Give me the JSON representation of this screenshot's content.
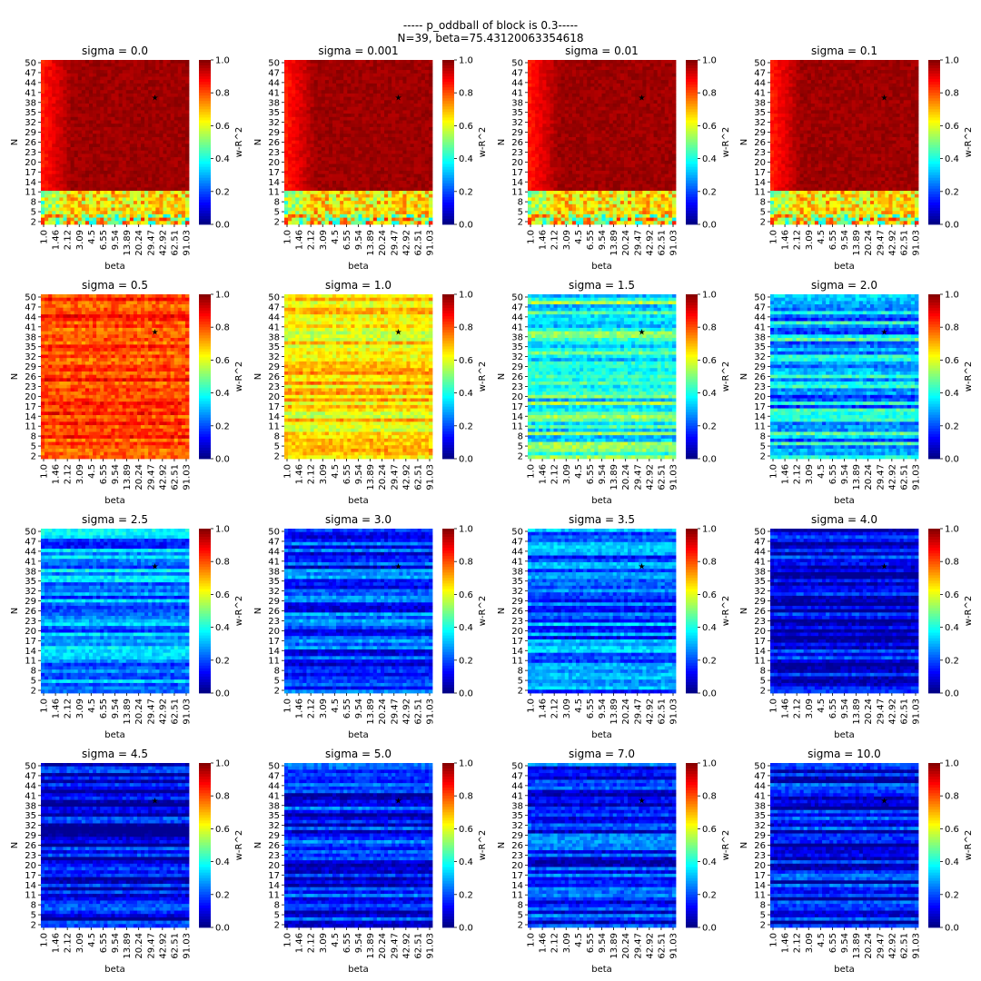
{
  "figure": {
    "title_line1": "----- p_oddball of block is 0.3-----",
    "title_line2": "N=39, beta=75.43120063354618"
  },
  "chart_data": {
    "type": "heatmap",
    "grid": false,
    "colormap": "jet",
    "colorbar_label": "w-R^2",
    "colorbar_ticks": [
      "0.0",
      "0.2",
      "0.4",
      "0.6",
      "0.8",
      "1.0"
    ],
    "xlabel": "beta",
    "ylabel": "N",
    "x_tick_labels": [
      "1.0",
      "1.46",
      "2.12",
      "3.09",
      "4.5",
      "6.55",
      "9.54",
      "13.89",
      "20.24",
      "29.47",
      "42.92",
      "62.51",
      "91.03"
    ],
    "y_tick_labels": [
      "50",
      "47",
      "44",
      "41",
      "38",
      "35",
      "32",
      "29",
      "26",
      "23",
      "20",
      "17",
      "14",
      "11",
      "8",
      "5",
      "2"
    ],
    "marker": {
      "symbol": "★",
      "N": 39,
      "beta": 75.43120063354618
    },
    "panels": [
      {
        "title": "sigma = 0.0",
        "sigma": 0.0,
        "level": 0.95
      },
      {
        "title": "sigma = 0.001",
        "sigma": 0.001,
        "level": 0.95
      },
      {
        "title": "sigma = 0.01",
        "sigma": 0.01,
        "level": 0.95
      },
      {
        "title": "sigma = 0.1",
        "sigma": 0.1,
        "level": 0.94
      },
      {
        "title": "sigma = 0.5",
        "sigma": 0.5,
        "level": 0.82
      },
      {
        "title": "sigma = 1.0",
        "sigma": 1.0,
        "level": 0.66
      },
      {
        "title": "sigma = 1.5",
        "sigma": 1.5,
        "level": 0.42
      },
      {
        "title": "sigma = 2.0",
        "sigma": 2.0,
        "level": 0.32
      },
      {
        "title": "sigma = 2.5",
        "sigma": 2.5,
        "level": 0.26
      },
      {
        "title": "sigma = 3.0",
        "sigma": 3.0,
        "level": 0.18
      },
      {
        "title": "sigma = 3.5",
        "sigma": 3.5,
        "level": 0.22
      },
      {
        "title": "sigma = 4.0",
        "sigma": 4.0,
        "level": 0.1
      },
      {
        "title": "sigma = 4.5",
        "sigma": 4.5,
        "level": 0.1
      },
      {
        "title": "sigma = 5.0",
        "sigma": 5.0,
        "level": 0.15
      },
      {
        "title": "sigma = 7.0",
        "sigma": 7.0,
        "level": 0.15
      },
      {
        "title": "sigma = 10.0",
        "sigma": 10.0,
        "level": 0.12
      }
    ]
  }
}
